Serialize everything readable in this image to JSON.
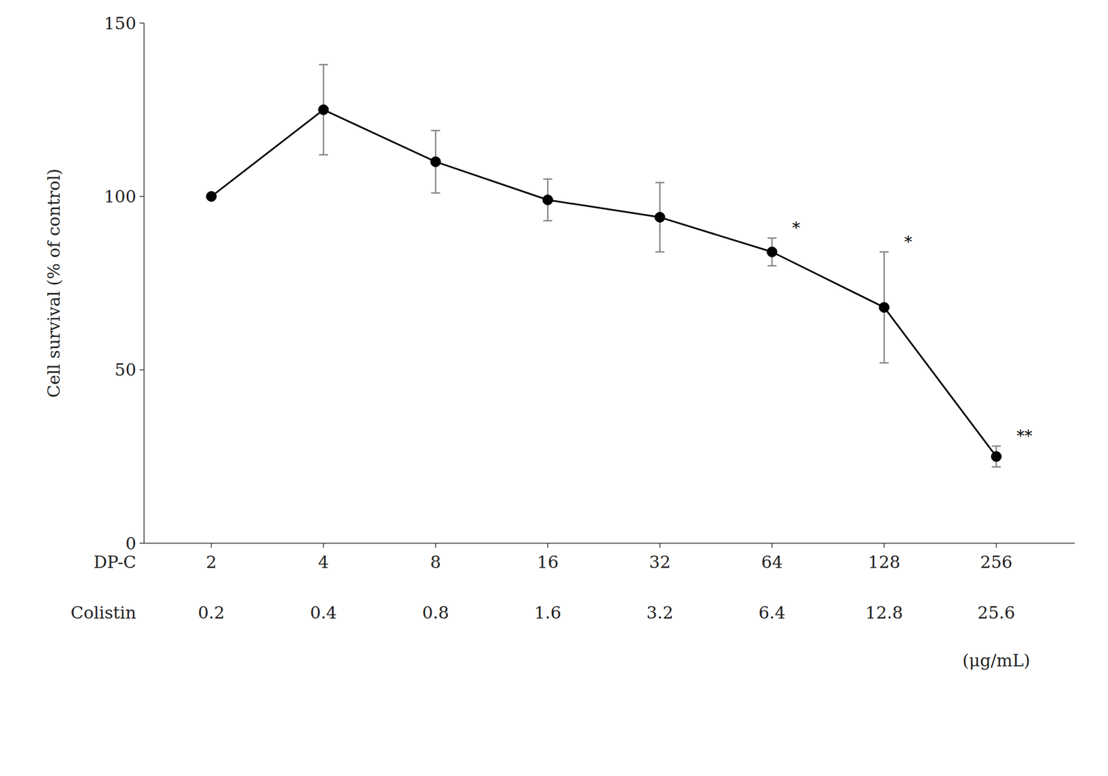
{
  "chart_data": {
    "type": "line",
    "ylabel": "Cell survival (% of control)",
    "xlabel": "DP-C",
    "categories": [
      "2",
      "4",
      "8",
      "16",
      "32",
      "64",
      "128",
      "256"
    ],
    "xlabel2": "Colistin",
    "categories2": [
      "0.2",
      "0.4",
      "0.8",
      "1.6",
      "3.2",
      "6.4",
      "12.8",
      "25.6"
    ],
    "x_unit_label": "(μg/mL)",
    "series": [
      {
        "values": [
          100,
          125,
          110,
          99,
          94,
          84,
          68,
          25
        ],
        "error_upper": [
          0,
          13,
          9,
          6,
          10,
          4,
          16,
          3
        ],
        "error_lower": [
          0,
          13,
          9,
          6,
          10,
          4,
          16,
          3
        ],
        "color": "#000000",
        "marker": "circle"
      }
    ],
    "annotations": [
      {
        "index": 5,
        "text": "*"
      },
      {
        "index": 6,
        "text": "*"
      },
      {
        "index": 7,
        "text": "**"
      }
    ],
    "ylim": [
      0,
      150
    ],
    "yticks": [
      0,
      50,
      100,
      150
    ],
    "grid": false
  }
}
